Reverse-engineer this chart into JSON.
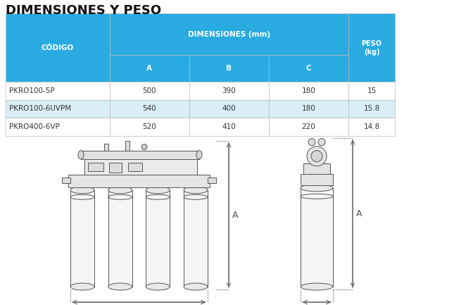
{
  "title": "DIMENSIONES Y PESO",
  "title_fontsize": 13,
  "header_bg_color": "#29ABE2",
  "header_text_color": "#FFFFFF",
  "row_colors": [
    "#FFFFFF",
    "#D9EEF7",
    "#FFFFFF"
  ],
  "col_header": "CÓDIGO",
  "dim_header": "DIMENSIONES (mm)",
  "peso_header": "PESO\n(kg)",
  "sub_headers": [
    "A",
    "B",
    "C"
  ],
  "rows": [
    [
      "PKRO100-5P",
      "500",
      "390",
      "180",
      "15"
    ],
    [
      "PKRO100-6UVPM",
      "540",
      "400",
      "180",
      "15.8"
    ],
    [
      "PKRO400-6VP",
      "520",
      "410",
      "220",
      "14.8"
    ]
  ],
  "line_color": "#555555",
  "background_color": "#FFFFFF"
}
